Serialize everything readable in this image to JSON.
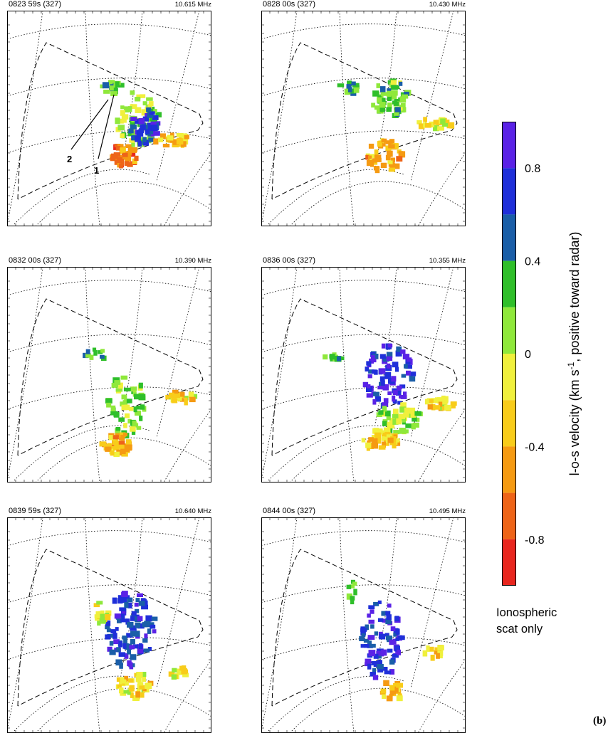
{
  "panels": [
    {
      "time": "0823 59s (327)",
      "freq": "10.615 MHz",
      "annotations": [
        "2",
        "1"
      ]
    },
    {
      "time": "0828 00s (327)",
      "freq": "10.430 MHz",
      "annotations": []
    },
    {
      "time": "0832 00s (327)",
      "freq": "10.390 MHz",
      "annotations": []
    },
    {
      "time": "0836 00s (327)",
      "freq": "10.355 MHz",
      "annotations": []
    },
    {
      "time": "0839 59s (327)",
      "freq": "10.640 MHz",
      "annotations": []
    },
    {
      "time": "0844 00s (327)",
      "freq": "10.495 MHz",
      "annotations": []
    }
  ],
  "chart_data": {
    "type": "heatmap",
    "colorbar": {
      "label": "l-o-s velocity (km s-1, positive toward radar)",
      "label_parts": [
        "l-o-s velocity (km s",
        "-1",
        ", positive toward radar)"
      ],
      "range": [
        -1.0,
        1.0
      ],
      "ticks": [
        0.8,
        0.4,
        0,
        -0.4,
        -0.8
      ],
      "tick_labels": [
        "0.8",
        "0.4",
        "0",
        "-0.4",
        "-0.8"
      ],
      "bins": [
        {
          "from": 0.8,
          "to": 1.0,
          "color": "#5a22e6"
        },
        {
          "from": 0.6,
          "to": 0.8,
          "color": "#1f2fd9"
        },
        {
          "from": 0.4,
          "to": 0.6,
          "color": "#1a5ea8"
        },
        {
          "from": 0.2,
          "to": 0.4,
          "color": "#2fbf2a"
        },
        {
          "from": 0.0,
          "to": 0.2,
          "color": "#8fe83b"
        },
        {
          "from": -0.2,
          "to": 0.0,
          "color": "#f0f03c"
        },
        {
          "from": -0.4,
          "to": -0.2,
          "color": "#f8cc1a"
        },
        {
          "from": -0.6,
          "to": -0.4,
          "color": "#f59a12"
        },
        {
          "from": -0.8,
          "to": -0.6,
          "color": "#ee6418"
        },
        {
          "from": -1.0,
          "to": -0.8,
          "color": "#e8261e"
        }
      ]
    },
    "footnote": [
      "Ionospheric",
      "scat only"
    ],
    "figure_label": "(b)"
  }
}
